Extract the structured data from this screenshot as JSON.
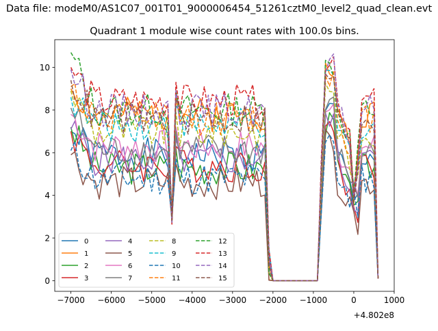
{
  "chart_data": {
    "type": "line",
    "suptitle": "Data file: modeM0/AS1C07_001T01_9000006454_51261cztM0_level2_quad_clean.evt",
    "title": "Quadrant 1 module wise count rates with 100.0s bins.",
    "xlabel": "",
    "ylabel": "",
    "x_offset_label": "+4.802e8",
    "xlim": [
      -7400,
      1000
    ],
    "ylim": [
      -0.5,
      11.3
    ],
    "x_ticks": [
      -7000,
      -6000,
      -5000,
      -4000,
      -3000,
      -2000,
      -1000,
      0,
      1000
    ],
    "x_tick_labels": [
      "−7000",
      "−6000",
      "−5000",
      "−4000",
      "−3000",
      "−2000",
      "−1000",
      "0",
      "1000"
    ],
    "y_ticks": [
      0,
      2,
      4,
      6,
      8,
      10
    ],
    "y_tick_labels": [
      "0",
      "2",
      "4",
      "6",
      "8",
      "10"
    ],
    "grid": false,
    "legend_placement": "lower-left",
    "legend_columns": 4,
    "x_start": -7000,
    "x_step": 100,
    "series": [
      {
        "name": "0",
        "color": "#1f77b4",
        "dash": "solid",
        "mean": 5.9,
        "start": 7.0,
        "end": 0.1,
        "seed": 1
      },
      {
        "name": "1",
        "color": "#ff7f0e",
        "dash": "solid",
        "mean": 7.8,
        "start": 9.0,
        "end": 0.1,
        "seed": 2
      },
      {
        "name": "2",
        "color": "#2ca02c",
        "dash": "solid",
        "mean": 5.3,
        "start": 7.2,
        "end": 0.1,
        "seed": 3
      },
      {
        "name": "3",
        "color": "#d62728",
        "dash": "solid",
        "mean": 5.4,
        "start": 7.0,
        "end": 0.1,
        "seed": 4
      },
      {
        "name": "4",
        "color": "#9467bd",
        "dash": "solid",
        "mean": 5.7,
        "start": 7.1,
        "end": 0.1,
        "seed": 5
      },
      {
        "name": "5",
        "color": "#8c564b",
        "dash": "solid",
        "mean": 4.6,
        "start": 5.9,
        "end": 0.1,
        "seed": 6
      },
      {
        "name": "6",
        "color": "#e377c2",
        "dash": "solid",
        "mean": 6.3,
        "start": 7.8,
        "end": 0.1,
        "seed": 7
      },
      {
        "name": "7",
        "color": "#7f7f7f",
        "dash": "solid",
        "mean": 6.1,
        "start": 8.1,
        "end": 0.1,
        "seed": 8
      },
      {
        "name": "8",
        "color": "#bcbd22",
        "dash": "dashed",
        "mean": 7.0,
        "start": 8.9,
        "end": 0.1,
        "seed": 9
      },
      {
        "name": "9",
        "color": "#17becf",
        "dash": "dashed",
        "mean": 7.3,
        "start": 8.6,
        "end": 0.1,
        "seed": 10
      },
      {
        "name": "10",
        "color": "#1f77b4",
        "dash": "dashed",
        "mean": 4.8,
        "start": 6.1,
        "end": 0.1,
        "seed": 11
      },
      {
        "name": "11",
        "color": "#ff7f0e",
        "dash": "dashed",
        "mean": 7.6,
        "start": 9.1,
        "end": 0.1,
        "seed": 12
      },
      {
        "name": "12",
        "color": "#2ca02c",
        "dash": "dashed",
        "mean": 8.0,
        "start": 10.7,
        "end": 0.1,
        "seed": 13
      },
      {
        "name": "13",
        "color": "#d62728",
        "dash": "dashed",
        "mean": 8.4,
        "start": 10.0,
        "end": 0.1,
        "seed": 14
      },
      {
        "name": "14",
        "color": "#9467bd",
        "dash": "dashed",
        "mean": 8.0,
        "start": 9.9,
        "end": 0.1,
        "seed": 15
      },
      {
        "name": "15",
        "color": "#8c564b",
        "dash": "dashed",
        "mean": 7.6,
        "start": 9.4,
        "end": 0.1,
        "seed": 16
      }
    ]
  }
}
